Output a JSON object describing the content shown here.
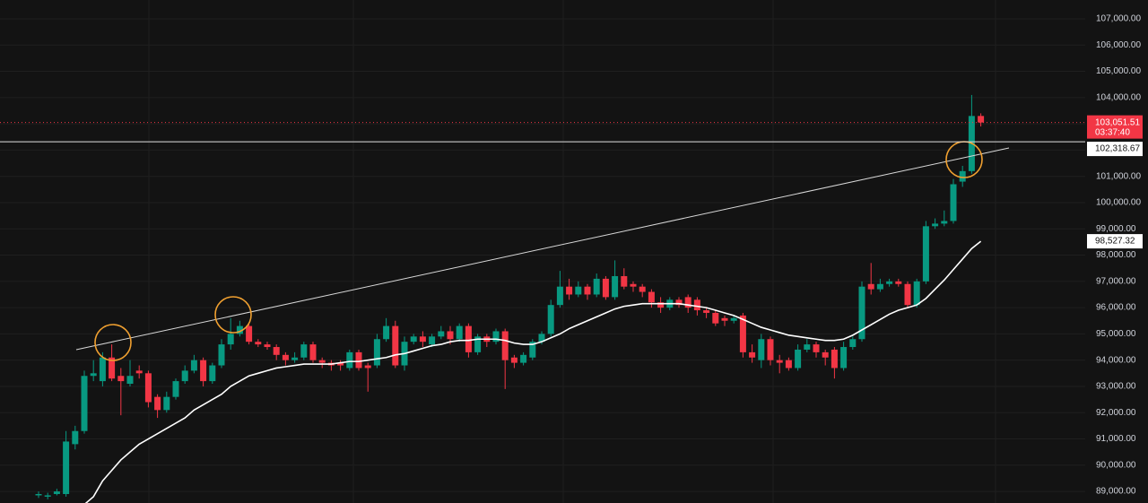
{
  "chart_data": {
    "type": "candlestick",
    "ylim": [
      88559,
      107717
    ],
    "yticks": [
      {
        "value": 107000,
        "label": "107,000.00"
      },
      {
        "value": 106000,
        "label": "106,000.00"
      },
      {
        "value": 105000,
        "label": "105,000.00"
      },
      {
        "value": 104000,
        "label": "104,000.00"
      },
      {
        "value": 103000,
        "label": "103,000.00"
      },
      {
        "value": 102000,
        "label": "102,000.00"
      },
      {
        "value": 101000,
        "label": "101,000.00"
      },
      {
        "value": 100000,
        "label": "100,000.00"
      },
      {
        "value": 99000,
        "label": "99,000.00"
      },
      {
        "value": 98000,
        "label": "98,000.00"
      },
      {
        "value": 97000,
        "label": "97,000.00"
      },
      {
        "value": 96000,
        "label": "96,000.00"
      },
      {
        "value": 95000,
        "label": "95,000.00"
      },
      {
        "value": 94000,
        "label": "94,000.00"
      },
      {
        "value": 93000,
        "label": "93,000.00"
      },
      {
        "value": 92000,
        "label": "92,000.00"
      },
      {
        "value": 91000,
        "label": "91,000.00"
      },
      {
        "value": 90000,
        "label": "90,000.00"
      },
      {
        "value": 89000,
        "label": "89,000.00"
      }
    ],
    "grid": true,
    "up_color": "#089981",
    "down_color": "#f23645",
    "open": [
      88850,
      88800,
      88900,
      88900,
      90800,
      91300,
      93400,
      93200,
      94100,
      93400,
      93100,
      93600,
      93500,
      92600,
      92100,
      92600,
      93200,
      93600,
      94000,
      93200,
      93800,
      94600,
      95000,
      95300,
      94700,
      94600,
      94500,
      94200,
      94000,
      94100,
      94600,
      94000,
      93900,
      93900,
      93700,
      94300,
      93800,
      93800,
      94800,
      95300,
      93800,
      94700,
      94900,
      94600,
      94900,
      95100,
      94800,
      95300,
      94300,
      94900,
      94700,
      95100,
      94100,
      93900,
      94100,
      94700,
      95000,
      96100,
      96800,
      96500,
      96800,
      96500,
      97100,
      96400,
      97200,
      96900,
      96800,
      96600,
      96200,
      96000,
      96300,
      96400,
      96300,
      95900,
      95800,
      95600,
      95500,
      95700,
      94300,
      94000,
      94800,
      94000,
      94000,
      93700,
      94400,
      94600,
      94300,
      94400,
      93700,
      94500,
      94800,
      96900,
      96700,
      96900,
      97000,
      96900,
      96100,
      97000,
      99100,
      99200,
      99300,
      100800,
      101200,
      103300
    ],
    "high": [
      89000,
      88950,
      89100,
      91300,
      91500,
      93600,
      94000,
      94300,
      94600,
      93700,
      94000,
      93800,
      93600,
      92700,
      92800,
      93300,
      93800,
      94200,
      94100,
      93900,
      94800,
      95600,
      95500,
      95400,
      94800,
      94700,
      94600,
      94300,
      94300,
      94700,
      94700,
      94100,
      94000,
      94000,
      94400,
      94400,
      93900,
      95000,
      95600,
      95500,
      94900,
      95000,
      95100,
      95000,
      95300,
      95300,
      95400,
      95400,
      95000,
      95000,
      95200,
      95200,
      94200,
      94300,
      94800,
      95100,
      96300,
      97400,
      97100,
      97000,
      96900,
      97300,
      97200,
      97800,
      97500,
      97000,
      96900,
      96700,
      96400,
      96400,
      96400,
      96500,
      96400,
      96000,
      95900,
      95700,
      95700,
      95800,
      94600,
      95000,
      94900,
      94200,
      94100,
      94600,
      94800,
      94700,
      94400,
      94500,
      94700,
      94900,
      97000,
      97700,
      97100,
      97100,
      97100,
      97000,
      97100,
      99300,
      99400,
      99700,
      100900,
      101400,
      104100,
      103400
    ],
    "low": [
      88750,
      88700,
      88850,
      88800,
      90600,
      91200,
      93200,
      93000,
      93200,
      91900,
      93000,
      93300,
      92200,
      91800,
      92000,
      92500,
      93100,
      93500,
      93000,
      93100,
      93700,
      94400,
      94900,
      94600,
      94500,
      94400,
      94000,
      93800,
      93900,
      94000,
      93900,
      93700,
      93600,
      93600,
      93600,
      93600,
      92800,
      93700,
      94700,
      93700,
      93600,
      94600,
      94500,
      94500,
      94800,
      94600,
      94700,
      94100,
      94200,
      94500,
      94600,
      92900,
      93700,
      93800,
      94000,
      94600,
      94900,
      96000,
      96300,
      96400,
      96300,
      96400,
      96300,
      96300,
      96700,
      96600,
      96400,
      96000,
      95800,
      95900,
      96000,
      95800,
      95700,
      95600,
      95300,
      95300,
      95400,
      94100,
      93900,
      93700,
      93800,
      93500,
      93600,
      93600,
      94300,
      94100,
      93800,
      93300,
      93600,
      94400,
      94700,
      96500,
      96600,
      96800,
      96800,
      96000,
      96000,
      96900,
      99000,
      99100,
      99200,
      100600,
      101100,
      102900
    ],
    "close": [
      88900,
      88850,
      89000,
      90900,
      91300,
      93400,
      93500,
      94100,
      93300,
      93200,
      93400,
      93500,
      92400,
      92100,
      92600,
      93200,
      93600,
      94000,
      93200,
      93800,
      94600,
      95000,
      95300,
      94700,
      94600,
      94500,
      94200,
      94000,
      94100,
      94600,
      94000,
      93900,
      93800,
      93800,
      94300,
      93700,
      93700,
      94800,
      95300,
      93800,
      94700,
      94900,
      94700,
      94900,
      95100,
      94800,
      95300,
      94300,
      94900,
      94700,
      95100,
      94000,
      93900,
      94200,
      94700,
      95000,
      96100,
      96800,
      96500,
      96800,
      96500,
      97100,
      96400,
      97200,
      96800,
      96800,
      96600,
      96200,
      96000,
      96300,
      96100,
      96000,
      95900,
      95800,
      95400,
      95500,
      95600,
      94300,
      94100,
      94800,
      94000,
      93900,
      93700,
      94400,
      94600,
      94300,
      94100,
      93700,
      94500,
      94800,
      96800,
      96700,
      96900,
      97000,
      96900,
      96100,
      97000,
      99100,
      99200,
      99300,
      100700,
      101200,
      103300,
      103051.51
    ],
    "moving_average": {
      "color": "#ffffff",
      "values": [
        null,
        null,
        null,
        null,
        null,
        88500,
        88800,
        89400,
        89800,
        90200,
        90500,
        90800,
        91000,
        91200,
        91400,
        91600,
        91800,
        92100,
        92300,
        92500,
        92700,
        93000,
        93200,
        93400,
        93500,
        93600,
        93700,
        93750,
        93800,
        93850,
        93850,
        93850,
        93850,
        93900,
        93950,
        93950,
        94000,
        94050,
        94100,
        94200,
        94250,
        94350,
        94450,
        94550,
        94600,
        94700,
        94750,
        94750,
        94800,
        94800,
        94800,
        94750,
        94650,
        94600,
        94600,
        94700,
        94850,
        95000,
        95200,
        95350,
        95500,
        95650,
        95800,
        95950,
        96050,
        96100,
        96150,
        96150,
        96150,
        96150,
        96150,
        96100,
        96050,
        96000,
        95900,
        95800,
        95700,
        95550,
        95400,
        95250,
        95150,
        95050,
        94950,
        94900,
        94850,
        94800,
        94750,
        94750,
        94800,
        94950,
        95150,
        95350,
        95550,
        95750,
        95900,
        96000,
        96100,
        96350,
        96700,
        97050,
        97450,
        97850,
        98250,
        98527.32
      ],
      "last_label": "98,527.32"
    },
    "last_price": {
      "value": 103051.51,
      "label": "103,051.51",
      "countdown": "03:37:40"
    },
    "horizontal_line": {
      "value": 102318.67,
      "label": "102,318.67"
    }
  }
}
